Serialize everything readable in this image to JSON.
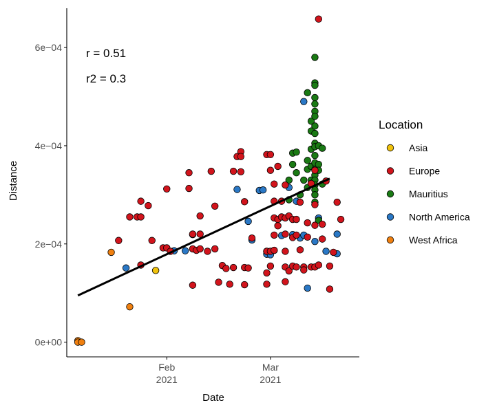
{
  "chart_data": {
    "type": "scatter",
    "title": "",
    "xlabel": "Date",
    "ylabel": "Distance",
    "xlim": [
      "2021-01-05",
      "2021-03-25"
    ],
    "ylim": [
      -3e-05,
      0.00068
    ],
    "grid": false,
    "x_ticks": [
      {
        "value": "2021-02-01",
        "line1": "Feb",
        "line2": "2021"
      },
      {
        "value": "2021-03-01",
        "line1": "Mar",
        "line2": "2021"
      }
    ],
    "y_ticks": [
      {
        "value": 0,
        "label": "0e+00"
      },
      {
        "value": 0.0002,
        "label": "2e−04"
      },
      {
        "value": 0.0004,
        "label": "4e−04"
      },
      {
        "value": 0.0006,
        "label": "6e−04"
      }
    ],
    "annotations": [
      "r = 0.51",
      "r2 = 0.3"
    ],
    "legend": {
      "title": "Location",
      "position": "right",
      "entries": [
        {
          "name": "Asia",
          "color": "#f0c20c"
        },
        {
          "name": "Europe",
          "color": "#d2141c"
        },
        {
          "name": "Mauritius",
          "color": "#1a7a14"
        },
        {
          "name": "North America",
          "color": "#2a78c6"
        },
        {
          "name": "West Africa",
          "color": "#f08010"
        }
      ]
    },
    "trend_line": {
      "x": [
        "2021-01-08",
        "2021-03-17"
      ],
      "y": [
        9.5e-05,
        0.000333
      ]
    },
    "series": [
      {
        "name": "Asia",
        "color": "#f0c20c",
        "points": [
          [
            "2021-01-29",
            0.000146
          ]
        ]
      },
      {
        "name": "West Africa",
        "color": "#f08010",
        "points": [
          [
            "2021-01-08",
            3e-06
          ],
          [
            "2021-01-08",
            0.0
          ],
          [
            "2021-01-09",
            0.0
          ],
          [
            "2021-01-17",
            0.000183
          ],
          [
            "2021-01-22",
            7.2e-05
          ]
        ]
      },
      {
        "name": "North America",
        "color": "#2a78c6",
        "points": [
          [
            "2021-01-21",
            0.000151
          ],
          [
            "2021-02-03",
            0.000186
          ],
          [
            "2021-02-06",
            0.000186
          ],
          [
            "2021-02-08",
            0.000219
          ],
          [
            "2021-02-20",
            0.000311
          ],
          [
            "2021-02-23",
            0.000246
          ],
          [
            "2021-02-24",
            0.000208
          ],
          [
            "2021-02-26",
            0.000309
          ],
          [
            "2021-02-27",
            0.00031
          ],
          [
            "2021-02-28",
            0.000179
          ],
          [
            "2021-03-01",
            0.000178
          ],
          [
            "2021-03-02",
            0.000187
          ],
          [
            "2021-03-04",
            0.000217
          ],
          [
            "2021-03-06",
            0.000315
          ],
          [
            "2021-03-07",
            0.000219
          ],
          [
            "2021-03-08",
            0.000287
          ],
          [
            "2021-03-09",
            0.000212
          ],
          [
            "2021-03-10",
            0.000218
          ],
          [
            "2021-03-10",
            0.00049
          ],
          [
            "2021-03-11",
            0.00011
          ],
          [
            "2021-03-12",
            0.000323
          ],
          [
            "2021-03-13",
            0.000205
          ],
          [
            "2021-03-14",
            0.000253
          ],
          [
            "2021-03-16",
            0.000185
          ],
          [
            "2021-03-19",
            0.00018
          ],
          [
            "2021-03-19",
            0.00022
          ]
        ]
      },
      {
        "name": "Mauritius",
        "color": "#1a7a14",
        "points": [
          [
            "2021-03-06",
            0.00033
          ],
          [
            "2021-03-06",
            0.00029
          ],
          [
            "2021-03-07",
            0.000385
          ],
          [
            "2021-03-07",
            0.000362
          ],
          [
            "2021-03-08",
            0.000387
          ],
          [
            "2021-03-08",
            0.000345
          ],
          [
            "2021-03-09",
            0.0003
          ],
          [
            "2021-03-10",
            0.00033
          ],
          [
            "2021-03-11",
            0.000508
          ],
          [
            "2021-03-11",
            0.000352
          ],
          [
            "2021-03-11",
            0.000315
          ],
          [
            "2021-03-11",
            0.00037
          ],
          [
            "2021-03-12",
            0.00043
          ],
          [
            "2021-03-12",
            0.00045
          ],
          [
            "2021-03-12",
            0.000358
          ],
          [
            "2021-03-12",
            0.000393
          ],
          [
            "2021-03-12",
            0.00033
          ],
          [
            "2021-03-13",
            0.00058
          ],
          [
            "2021-03-13",
            0.000528
          ],
          [
            "2021-03-13",
            0.000523
          ],
          [
            "2021-03-13",
            0.000498
          ],
          [
            "2021-03-13",
            0.000485
          ],
          [
            "2021-03-13",
            0.00047
          ],
          [
            "2021-03-13",
            0.00046
          ],
          [
            "2021-03-13",
            0.00044
          ],
          [
            "2021-03-13",
            0.000425
          ],
          [
            "2021-03-13",
            0.000405
          ],
          [
            "2021-03-13",
            0.000398
          ],
          [
            "2021-03-13",
            0.00038
          ],
          [
            "2021-03-13",
            0.000365
          ],
          [
            "2021-03-13",
            0.000352
          ],
          [
            "2021-03-13",
            0.00034
          ],
          [
            "2021-03-13",
            0.00033
          ],
          [
            "2021-03-13",
            0.00032
          ],
          [
            "2021-03-13",
            0.00031
          ],
          [
            "2021-03-13",
            0.0003
          ],
          [
            "2021-03-13",
            0.000285
          ],
          [
            "2021-03-14",
            0.000248
          ],
          [
            "2021-03-14",
            0.0004
          ],
          [
            "2021-03-14",
            0.000362
          ],
          [
            "2021-03-14",
            0.00035
          ],
          [
            "2021-03-15",
            0.000395
          ],
          [
            "2021-03-15",
            0.000322
          ]
        ]
      },
      {
        "name": "Europe",
        "color": "#d2141c",
        "points": [
          [
            "2021-01-19",
            0.000207
          ],
          [
            "2021-01-22",
            0.000255
          ],
          [
            "2021-01-24",
            0.000255
          ],
          [
            "2021-01-25",
            0.000255
          ],
          [
            "2021-01-25",
            0.000287
          ],
          [
            "2021-01-25",
            0.000157
          ],
          [
            "2021-01-27",
            0.000278
          ],
          [
            "2021-01-28",
            0.000207
          ],
          [
            "2021-01-31",
            0.000192
          ],
          [
            "2021-02-01",
            0.000312
          ],
          [
            "2021-02-01",
            0.000192
          ],
          [
            "2021-02-02",
            0.000185
          ],
          [
            "2021-02-07",
            0.000345
          ],
          [
            "2021-02-07",
            0.000313
          ],
          [
            "2021-02-08",
            0.000116
          ],
          [
            "2021-02-08",
            0.00022
          ],
          [
            "2021-02-08",
            0.00019
          ],
          [
            "2021-02-09",
            0.000187
          ],
          [
            "2021-02-10",
            0.00019
          ],
          [
            "2021-02-10",
            0.000257
          ],
          [
            "2021-02-10",
            0.00022
          ],
          [
            "2021-02-12",
            0.000185
          ],
          [
            "2021-02-13",
            0.000348
          ],
          [
            "2021-02-14",
            0.000277
          ],
          [
            "2021-02-14",
            0.00019
          ],
          [
            "2021-02-15",
            0.000122
          ],
          [
            "2021-02-16",
            0.000156
          ],
          [
            "2021-02-17",
            0.00015
          ],
          [
            "2021-02-18",
            0.000118
          ],
          [
            "2021-02-19",
            0.000152
          ],
          [
            "2021-02-19",
            0.000348
          ],
          [
            "2021-02-20",
            0.000378
          ],
          [
            "2021-02-21",
            0.000388
          ],
          [
            "2021-02-21",
            0.000378
          ],
          [
            "2021-02-21",
            0.000347
          ],
          [
            "2021-02-22",
            0.000286
          ],
          [
            "2021-02-22",
            0.000152
          ],
          [
            "2021-02-22",
            0.000117
          ],
          [
            "2021-02-23",
            0.000151
          ],
          [
            "2021-02-24",
            0.000212
          ],
          [
            "2021-02-28",
            0.000382
          ],
          [
            "2021-02-28",
            0.000185
          ],
          [
            "2021-02-28",
            0.000185
          ],
          [
            "2021-02-28",
            0.000141
          ],
          [
            "2021-02-28",
            0.000118
          ],
          [
            "2021-03-01",
            0.000382
          ],
          [
            "2021-03-01",
            0.00035
          ],
          [
            "2021-03-01",
            0.000185
          ],
          [
            "2021-03-01",
            0.000155
          ],
          [
            "2021-03-02",
            0.000322
          ],
          [
            "2021-03-02",
            0.000287
          ],
          [
            "2021-03-02",
            0.000253
          ],
          [
            "2021-03-02",
            0.000218
          ],
          [
            "2021-03-02",
            0.000187
          ],
          [
            "2021-03-03",
            0.000358
          ],
          [
            "2021-03-03",
            0.00025
          ],
          [
            "2021-03-03",
            0.000237
          ],
          [
            "2021-03-04",
            0.000287
          ],
          [
            "2021-03-04",
            0.000255
          ],
          [
            "2021-03-05",
            0.00032
          ],
          [
            "2021-03-05",
            0.000253
          ],
          [
            "2021-03-05",
            0.00022
          ],
          [
            "2021-03-05",
            0.000185
          ],
          [
            "2021-03-05",
            0.000153
          ],
          [
            "2021-03-05",
            0.000123
          ],
          [
            "2021-03-06",
            0.000257
          ],
          [
            "2021-03-06",
            0.000145
          ],
          [
            "2021-03-07",
            0.00025
          ],
          [
            "2021-03-07",
            0.000213
          ],
          [
            "2021-03-07",
            0.000155
          ],
          [
            "2021-03-08",
            0.00025
          ],
          [
            "2021-03-08",
            0.000218
          ],
          [
            "2021-03-08",
            0.000153
          ],
          [
            "2021-03-09",
            0.000285
          ],
          [
            "2021-03-09",
            0.000188
          ],
          [
            "2021-03-10",
            0.000153
          ],
          [
            "2021-03-10",
            0.000147
          ],
          [
            "2021-03-11",
            0.000243
          ],
          [
            "2021-03-11",
            0.000214
          ],
          [
            "2021-03-12",
            0.000323
          ],
          [
            "2021-03-12",
            0.000153
          ],
          [
            "2021-03-13",
            0.00035
          ],
          [
            "2021-03-13",
            0.00028
          ],
          [
            "2021-03-13",
            0.000238
          ],
          [
            "2021-03-13",
            0.000153
          ],
          [
            "2021-03-14",
            0.000658
          ],
          [
            "2021-03-14",
            0.000157
          ],
          [
            "2021-03-15",
            0.00024
          ],
          [
            "2021-03-15",
            0.00021
          ],
          [
            "2021-03-16",
            0.000328
          ],
          [
            "2021-03-17",
            0.000155
          ],
          [
            "2021-03-17",
            0.000108
          ],
          [
            "2021-03-18",
            0.000183
          ],
          [
            "2021-03-19",
            0.000285
          ],
          [
            "2021-03-20",
            0.00025
          ]
        ]
      }
    ]
  }
}
